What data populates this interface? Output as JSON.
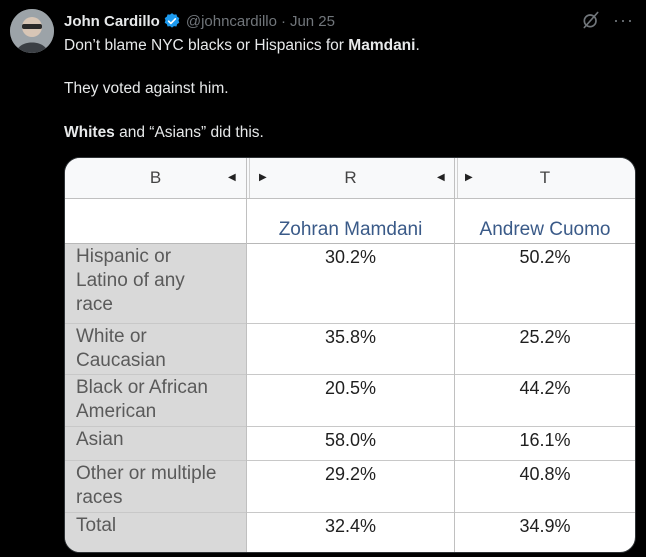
{
  "tweet": {
    "author_name": "John Cardillo",
    "handle": "@johncardillo",
    "separator": "·",
    "date": "Jun 25",
    "more_glyph": "···",
    "line1_prefix": "Don’t blame NYC blacks or Hispanics for ",
    "line1_bold": "Mamdani",
    "line1_suffix": ".",
    "line2": "They voted against him.",
    "line3_bold": "Whites",
    "line3_suffix": " and “Asians” did this."
  },
  "sheet": {
    "col_letters": [
      "B",
      "R",
      "T"
    ],
    "col_names": [
      "Zohran Mamdani",
      "Andrew Cuomo"
    ],
    "rows": [
      {
        "label_lines": [
          "Hispanic or",
          "Latino of any",
          "race"
        ],
        "mamdani": "30.2%",
        "cuomo": "50.2%"
      },
      {
        "label_lines": [
          "White or",
          "Caucasian"
        ],
        "mamdani": "35.8%",
        "cuomo": "25.2%"
      },
      {
        "label_lines": [
          "Black or African",
          "American"
        ],
        "mamdani": "20.5%",
        "cuomo": "44.2%"
      },
      {
        "label_lines": [
          "Asian"
        ],
        "mamdani": "58.0%",
        "cuomo": "16.1%"
      },
      {
        "label_lines": [
          "Other or multiple",
          "races"
        ],
        "mamdani": "29.2%",
        "cuomo": "40.8%"
      },
      {
        "label_lines": [
          "Total"
        ],
        "mamdani": "32.4%",
        "cuomo": "34.9%"
      }
    ]
  },
  "colors": {
    "background": "#000000",
    "text": "#e7e9ea",
    "muted": "#71767b",
    "verified": "#1d9bf0",
    "sheet_label_bg": "#d9d9d9",
    "sheet_header_text": "#3a5a88"
  }
}
